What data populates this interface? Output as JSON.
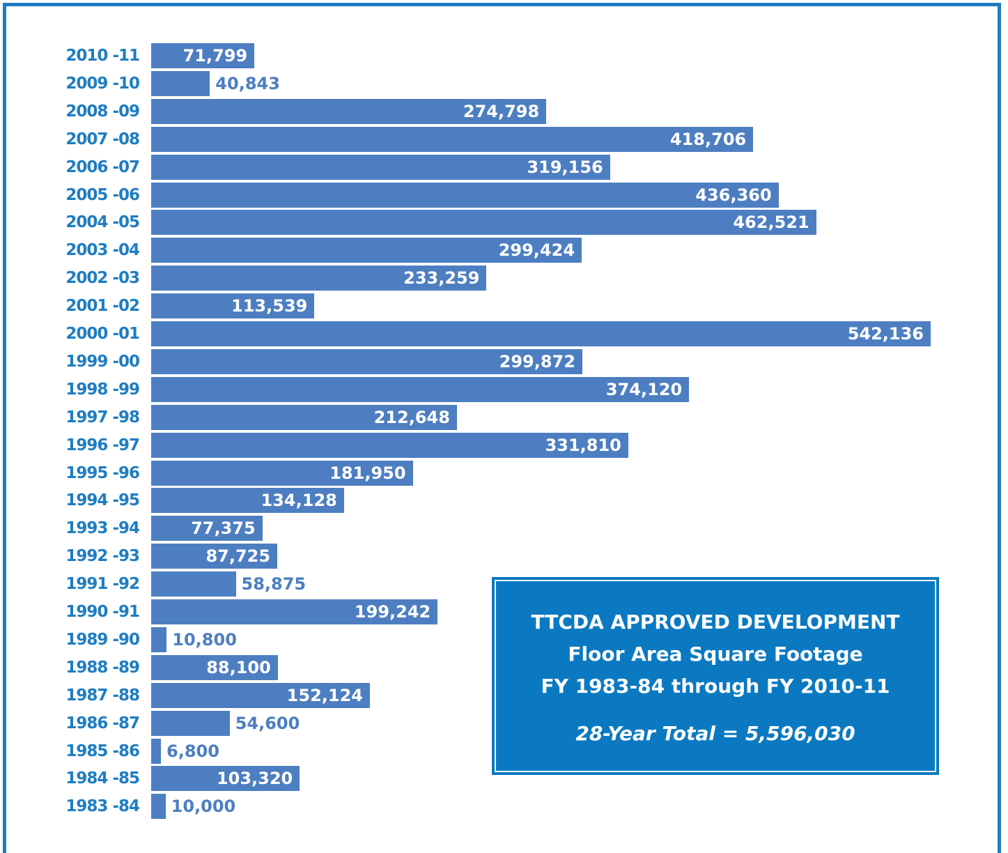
{
  "chart_data": {
    "type": "bar",
    "orientation": "horizontal",
    "categories": [
      "2010 -11",
      "2009 -10",
      "2008 -09",
      "2007 -08",
      "2006 -07",
      "2005 -06",
      "2004 -05",
      "2003 -04",
      "2002 -03",
      "2001 -02",
      "2000 -01",
      "1999 -00",
      "1998 -99",
      "1997 -98",
      "1996 -97",
      "1995 -96",
      "1994 -95",
      "1993 -94",
      "1992 -93",
      "1991 -92",
      "1990 -91",
      "1989 -90",
      "1988 -89",
      "1987 -88",
      "1986 -87",
      "1985 -86",
      "1984 -85",
      "1983 -84"
    ],
    "values": [
      71799,
      40843,
      274798,
      418706,
      319156,
      436360,
      462521,
      299424,
      233259,
      113539,
      542136,
      299872,
      374120,
      212648,
      331810,
      181950,
      134128,
      77375,
      87725,
      58875,
      199242,
      10800,
      88100,
      152124,
      54600,
      6800,
      103320,
      10000
    ],
    "value_labels": [
      "71,799",
      "40,843",
      "274,798",
      "418,706",
      "319,156",
      "436,360",
      "462,521",
      "299,424",
      "233,259",
      "113,539",
      "542,136",
      "299,872",
      "374,120",
      "212,648",
      "331,810",
      "181,950",
      "134,128",
      "77,375",
      "87,725",
      "58,875",
      "199,242",
      "10,800",
      "88,100",
      "152,124",
      "54,600",
      "6,800",
      "103,320",
      "10,000"
    ],
    "xlim": [
      0,
      542136
    ],
    "grid": false,
    "bar_color": "#4d7ec1",
    "label_color": "#1e7dc2"
  },
  "info_box": {
    "line1": "TTCDA APPROVED DEVELOPMENT",
    "line2": "Floor Area Square Footage",
    "line3": "FY 1983-84 through FY 2010-11",
    "total": "28-Year Total = 5,596,030"
  },
  "colors": {
    "frame": "#1e7dc2",
    "box_background": "#0b79c1"
  }
}
